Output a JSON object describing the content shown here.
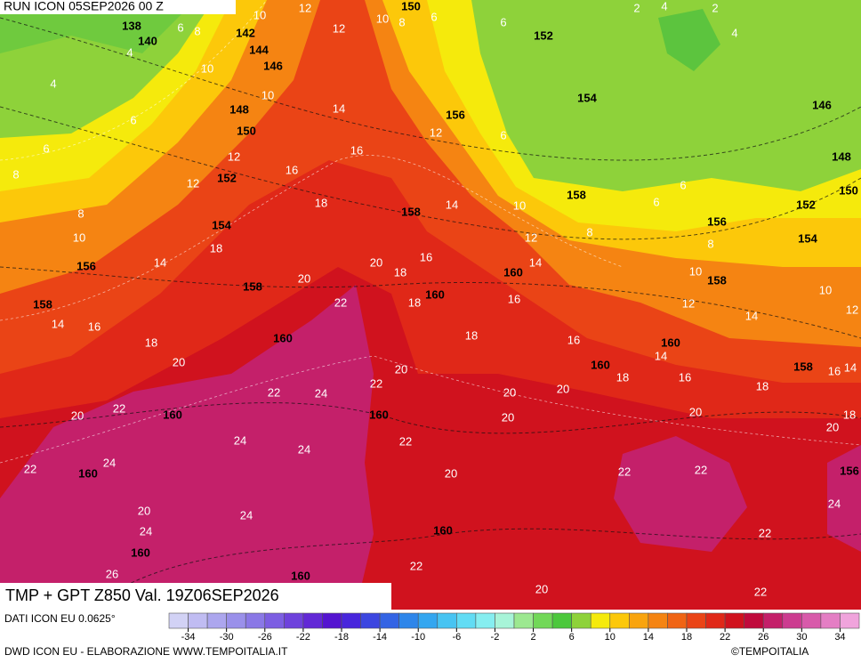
{
  "header": {
    "run": "RUN ICON 05SEP2026 00 Z"
  },
  "title": "TMP + GPT Z850 Val. 19Z06SEP2026",
  "source": "DATI ICON EU 0.0625°",
  "footer": "DWD ICON EU - ELABORAZIONE WWW.TEMPOITALIA.IT",
  "credit": "©TEMPOITALIA",
  "legend": {
    "ticks": [
      -34,
      -30,
      -26,
      -22,
      -18,
      -14,
      -10,
      -6,
      -2,
      2,
      6,
      10,
      14,
      18,
      22,
      26,
      30,
      34
    ],
    "colors": [
      "#d2d2f5",
      "#c0bcf2",
      "#aca6ee",
      "#9a90ea",
      "#8a78e6",
      "#7c5ee2",
      "#6e42dc",
      "#6228d6",
      "#5414d0",
      "#4826dc",
      "#3c46e0",
      "#3464e4",
      "#2e86ea",
      "#34a6f0",
      "#48c4f2",
      "#62dcf4",
      "#86eef0",
      "#a8f4d8",
      "#9ce890",
      "#72d858",
      "#4cc83c",
      "#8ed23a",
      "#f5ea0c",
      "#fcc80a",
      "#f9a40e",
      "#f58412",
      "#f06414",
      "#ea4416",
      "#e02818",
      "#d0121e",
      "#c00a3c",
      "#c4206a",
      "#cc3c90",
      "#d85aaa",
      "#e47ec4",
      "#f0a4dc"
    ]
  },
  "map": {
    "geopotential_labels": [
      138,
      140,
      142,
      144,
      146,
      148,
      150,
      152,
      154,
      156,
      158,
      158,
      160,
      160,
      160,
      160,
      160,
      160,
      160,
      150,
      152,
      154,
      156,
      158,
      158,
      160,
      160,
      160,
      160,
      156,
      158,
      152,
      154,
      146,
      148,
      150,
      158,
      156
    ],
    "temperature_labels": [
      12,
      10,
      10,
      8,
      6,
      12,
      6,
      8,
      4,
      4,
      10,
      6,
      6,
      8,
      10,
      14,
      12,
      12,
      16,
      16,
      12,
      6,
      6,
      2,
      4,
      2,
      4,
      18,
      14,
      10,
      6,
      12,
      8,
      8,
      6,
      10,
      8,
      10,
      14,
      18,
      20,
      20,
      18,
      16,
      14,
      22,
      18,
      16,
      12,
      14,
      10,
      12,
      14,
      16,
      18,
      20,
      18,
      16,
      14,
      16,
      18,
      16,
      14,
      22,
      24,
      22,
      20,
      20,
      20,
      18,
      20,
      22,
      20,
      20,
      20,
      18,
      22,
      24,
      24,
      24,
      22,
      20,
      22,
      22,
      24,
      24,
      20,
      24,
      22,
      26,
      22,
      20,
      22
    ]
  }
}
